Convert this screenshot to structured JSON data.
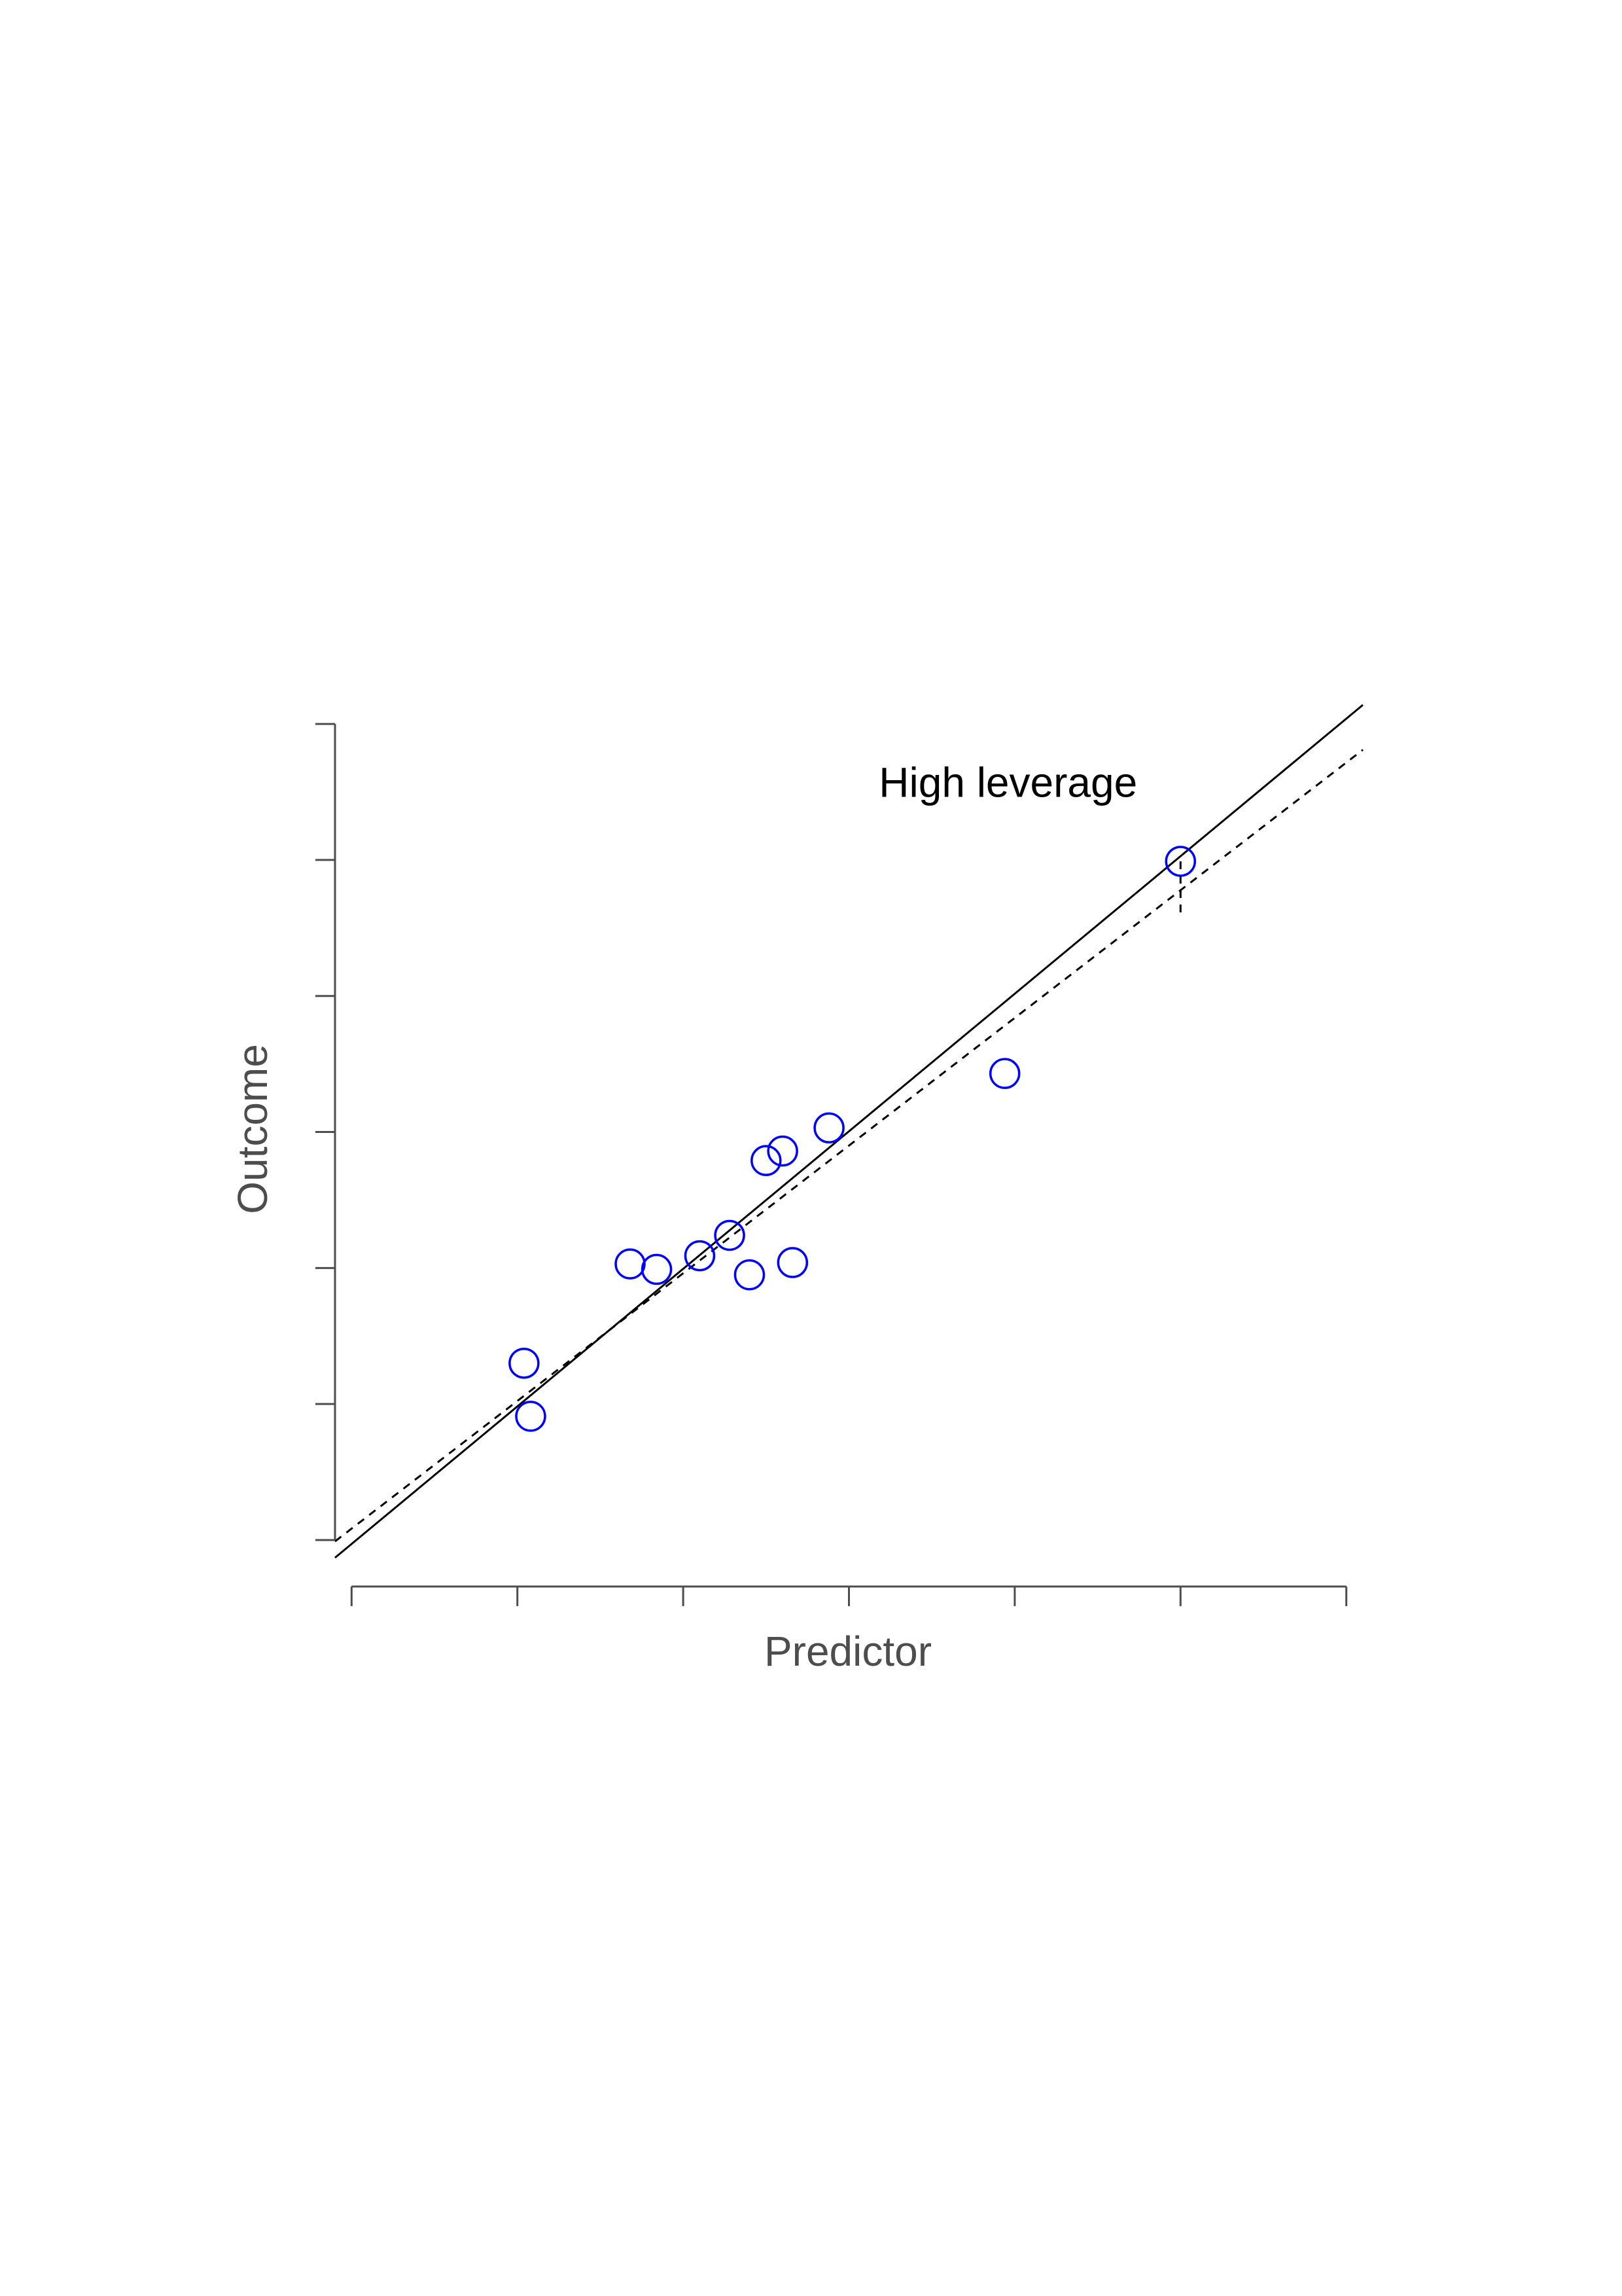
{
  "chart_data": {
    "type": "scatter",
    "title": "",
    "xlabel": "Predictor",
    "ylabel": "Outcome",
    "xlim": [
      0.95,
      4.05
    ],
    "ylim": [
      0.37,
      6.64
    ],
    "x_ticks": [
      1.0,
      1.5,
      2.0,
      2.5,
      3.0,
      3.5,
      4.0
    ],
    "y_ticks": [
      0.5,
      1.5,
      2.5,
      3.5,
      4.5,
      5.5,
      6.5
    ],
    "show_tick_labels": false,
    "grid": false,
    "point_color": "#0000ff",
    "points": [
      {
        "x": 1.52,
        "y": 1.8
      },
      {
        "x": 1.54,
        "y": 1.41
      },
      {
        "x": 1.84,
        "y": 2.53
      },
      {
        "x": 1.92,
        "y": 2.49
      },
      {
        "x": 2.05,
        "y": 2.59
      },
      {
        "x": 2.14,
        "y": 2.74
      },
      {
        "x": 2.2,
        "y": 2.45
      },
      {
        "x": 2.25,
        "y": 3.29
      },
      {
        "x": 2.3,
        "y": 3.36
      },
      {
        "x": 2.33,
        "y": 2.54
      },
      {
        "x": 2.44,
        "y": 3.53
      },
      {
        "x": 2.97,
        "y": 3.93
      },
      {
        "x": 3.5,
        "y": 5.49
      }
    ],
    "fit_lines": [
      {
        "style": "solid",
        "color": "#000000",
        "x": [
          0.95,
          4.05
        ],
        "y": [
          0.37,
          6.64
        ]
      },
      {
        "style": "dashed",
        "color": "#000000",
        "x": [
          0.95,
          4.05
        ],
        "y": [
          0.49,
          6.31
        ]
      }
    ],
    "residual_segments": [
      {
        "x": 3.5,
        "y_from": 5.49,
        "y_to": 5.07
      }
    ],
    "annotations": [
      {
        "text": "High leverage",
        "x": 2.98,
        "y": 6.07
      }
    ]
  }
}
